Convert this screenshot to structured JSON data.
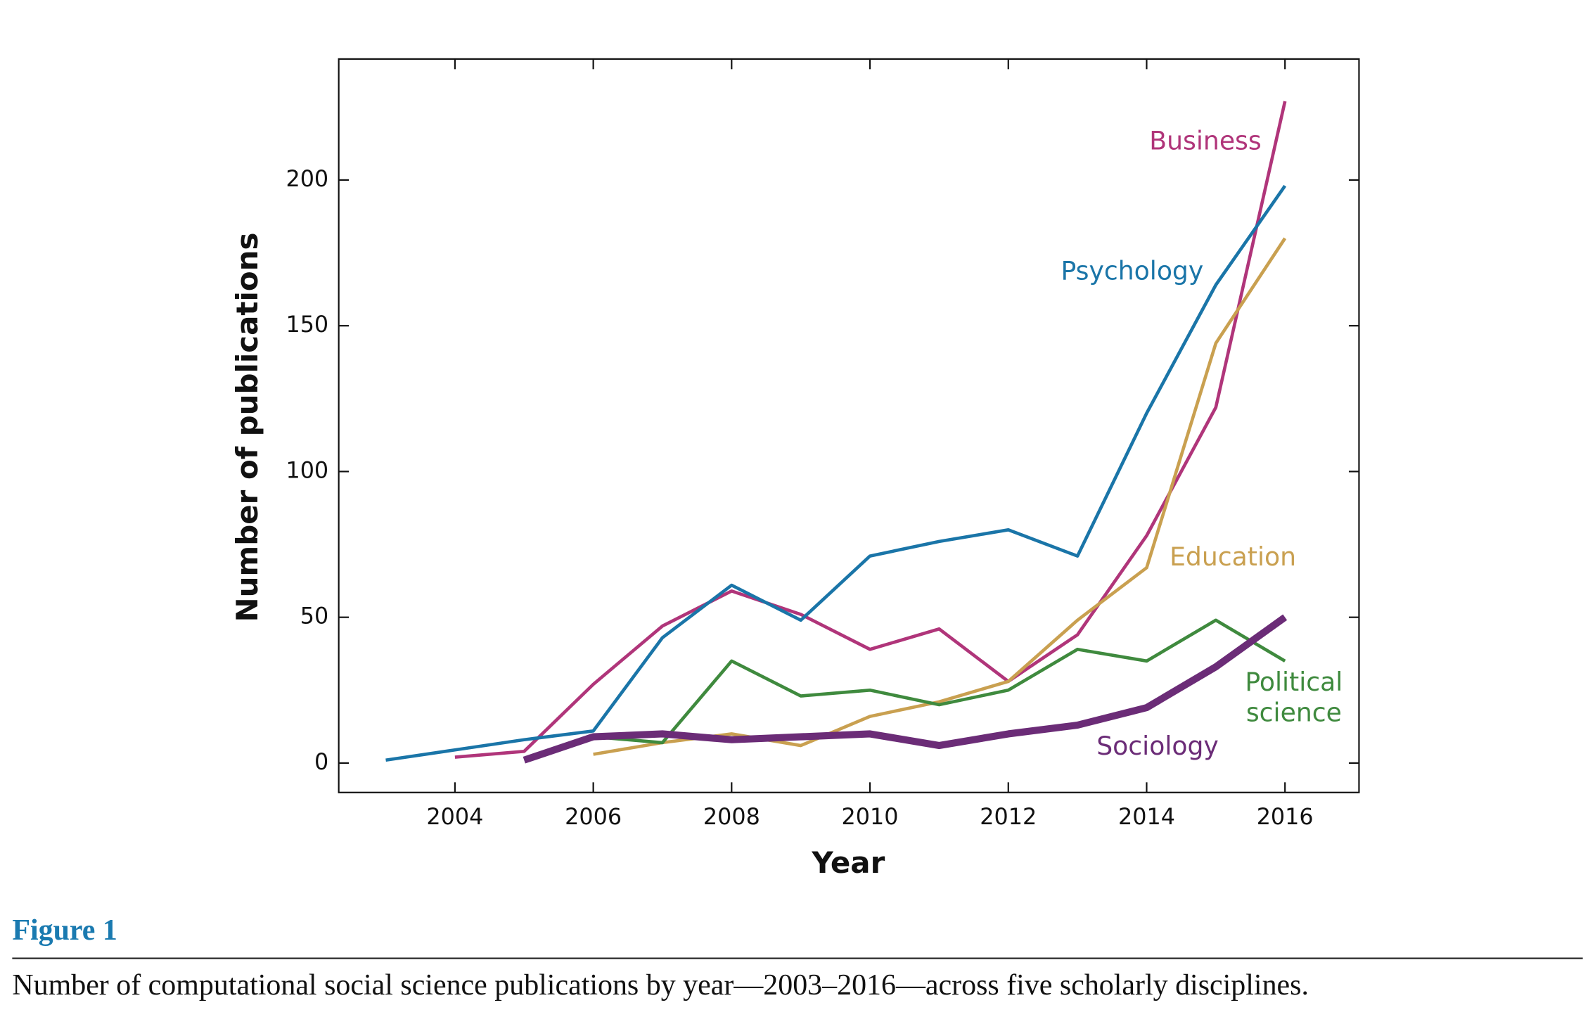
{
  "chart_data": {
    "type": "line",
    "x_label": "Year",
    "y_label": "Number of publications",
    "figure_label": "Figure 1",
    "caption": "Number of computational social science publications by year—2003–2016—across five scholarly disciplines.",
    "x": [
      2003,
      2004,
      2005,
      2006,
      2007,
      2008,
      2009,
      2010,
      2011,
      2012,
      2013,
      2014,
      2015,
      2016
    ],
    "series": [
      {
        "name": "Business",
        "color": "#b0357a",
        "values": [
          null,
          2,
          4,
          27,
          47,
          59,
          51,
          39,
          46,
          28,
          44,
          78,
          122,
          227
        ]
      },
      {
        "name": "Psychology",
        "color": "#1a75a8",
        "values": [
          1,
          4.5,
          8,
          11,
          43,
          61,
          49,
          71,
          76,
          80,
          71,
          120,
          164,
          198
        ]
      },
      {
        "name": "Education",
        "color": "#c9a050",
        "values": [
          null,
          null,
          null,
          3,
          7,
          10,
          6,
          16,
          21,
          28,
          49,
          67,
          144,
          180
        ]
      },
      {
        "name": "Political science",
        "color": "#3f8a3e",
        "values": [
          null,
          null,
          null,
          9,
          7,
          35,
          23,
          25,
          20,
          25,
          39,
          35,
          49,
          35
        ]
      },
      {
        "name": "Sociology",
        "color": "#6b2c77",
        "values": [
          null,
          null,
          1,
          9,
          10,
          8,
          9,
          10,
          6,
          10,
          13,
          19,
          33,
          50
        ]
      }
    ],
    "xlim": [
      2002.32,
      2017.07
    ],
    "ylim": [
      -10.1,
      241.5
    ],
    "xticks": [
      2004,
      2006,
      2008,
      2010,
      2012,
      2014,
      2016
    ],
    "yticks": [
      0,
      50,
      100,
      150,
      200
    ]
  }
}
